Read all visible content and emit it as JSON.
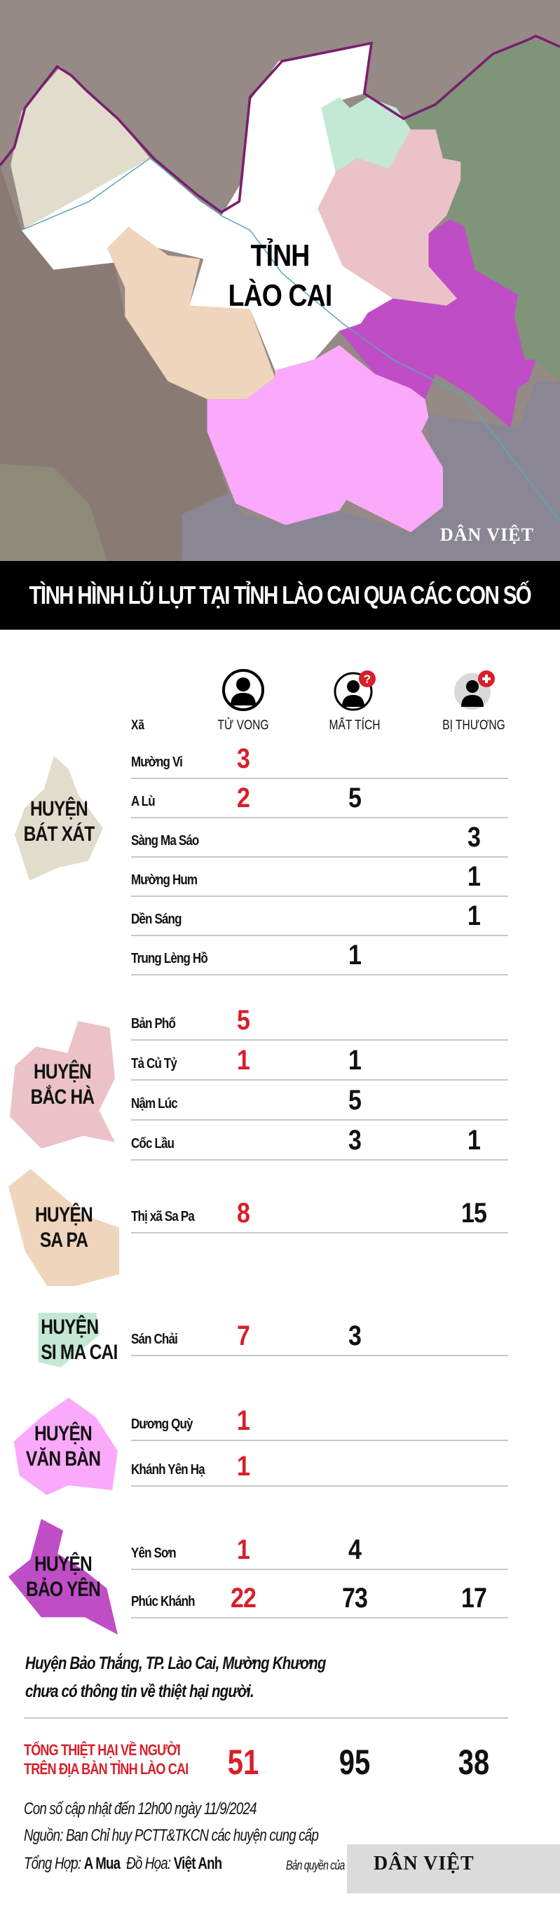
{
  "map": {
    "label_line1": "TỈNH",
    "label_line2": "LÀO CAI",
    "logo": "DÂN VIỆT",
    "colors": {
      "background": "#958a85",
      "bat_xat": "#e2dccc",
      "central": "#ffffff",
      "sa_pa": "#efd5bb",
      "si_ma_cai": "#c3e8d5",
      "bac_ha": "#ebc2c8",
      "bao_yen": "#bf4ec6",
      "van_ban": "#fba9fa",
      "border": "#7a1f6e"
    }
  },
  "title": "TÌNH HÌNH LŨ LỤT TẠI TỈNH LÀO CAI QUA CÁC CON SỐ",
  "columns": {
    "xa": "Xã",
    "tu_vong": "TỬ VONG",
    "mat_tich": "MẤT TÍCH",
    "bi_thuong": "BỊ THƯƠNG",
    "icons": [
      "person-icon",
      "person-missing-icon",
      "person-injured-icon"
    ]
  },
  "accent_red": "#d7202a",
  "districts": [
    {
      "line1": "HUYỆN",
      "line2": "BÁT XÁT",
      "color": "#e2dccc",
      "rows": [
        {
          "xa": "Mường Vi",
          "tu_vong": "3",
          "mat_tich": "",
          "bi_thuong": ""
        },
        {
          "xa": "A Lù",
          "tu_vong": "2",
          "mat_tich": "5",
          "bi_thuong": ""
        },
        {
          "xa": "Sàng Ma Sáo",
          "tu_vong": "",
          "mat_tich": "",
          "bi_thuong": "3"
        },
        {
          "xa": "Mường Hum",
          "tu_vong": "",
          "mat_tich": "",
          "bi_thuong": "1"
        },
        {
          "xa": "Dền Sáng",
          "tu_vong": "",
          "mat_tich": "",
          "bi_thuong": "1"
        },
        {
          "xa": "Trung Lèng Hồ",
          "tu_vong": "",
          "mat_tich": "1",
          "bi_thuong": ""
        }
      ]
    },
    {
      "line1": "HUYỆN",
      "line2": "BẮC HÀ",
      "color": "#ebc2c8",
      "rows": [
        {
          "xa": "Bản Phố",
          "tu_vong": "5",
          "mat_tich": "",
          "bi_thuong": ""
        },
        {
          "xa": "Tả Củ Tỷ",
          "tu_vong": "1",
          "mat_tich": "1",
          "bi_thuong": ""
        },
        {
          "xa": "Nậm Lúc",
          "tu_vong": "",
          "mat_tich": "5",
          "bi_thuong": ""
        },
        {
          "xa": "Cốc Lầu",
          "tu_vong": "",
          "mat_tich": "3",
          "bi_thuong": "1"
        }
      ]
    },
    {
      "line1": "HUYỆN",
      "line2": "SA PA",
      "color": "#efd5bb",
      "rows": [
        {
          "xa": "Thị xã Sa Pa",
          "tu_vong": "8",
          "mat_tich": "",
          "bi_thuong": "15"
        }
      ]
    },
    {
      "line1": "HUYỆN",
      "line2": "SI MA CAI",
      "color": "#c3e8d5",
      "rows": [
        {
          "xa": "Sán Chải",
          "tu_vong": "7",
          "mat_tich": "3",
          "bi_thuong": ""
        }
      ]
    },
    {
      "line1": "HUYỆN",
      "line2": "VĂN BÀN",
      "color": "#fba9fa",
      "rows": [
        {
          "xa": "Dương Quỳ",
          "tu_vong": "1",
          "mat_tich": "",
          "bi_thuong": ""
        },
        {
          "xa": "Khánh Yên Hạ",
          "tu_vong": "1",
          "mat_tich": "",
          "bi_thuong": ""
        }
      ]
    },
    {
      "line1": "HUYỆN",
      "line2": "BẢO YÊN",
      "color": "#bf4ec6",
      "rows": [
        {
          "xa": "Yên Sơn",
          "tu_vong": "1",
          "mat_tich": "4",
          "bi_thuong": ""
        },
        {
          "xa": "Phúc Khánh",
          "tu_vong": "22",
          "mat_tich": "73",
          "bi_thuong": "17"
        }
      ]
    }
  ],
  "note": {
    "line1": "Huyện Bảo Thắng, TP. Lào Cai, Mường Khương",
    "line2": "chưa có thông tin về thiệt hại người."
  },
  "totals": {
    "label_line1": "TỔNG THIỆT HẠI VỀ NGƯỜI",
    "label_line2": "TRÊN ĐỊA BÀN TỈNH LÀO CAI",
    "tu_vong": "51",
    "mat_tich": "95",
    "bi_thuong": "38"
  },
  "footer": {
    "updated": "Con số cập nhật đến 12h00 ngày 11/9/2024",
    "source": "Nguồn: Ban Chỉ huy PCTT&TKCN các huyện  cung cấp",
    "compiled_label": "Tổng Hợp:",
    "compiled_by": "A Mua",
    "graphics_label": "Đồ Họa:",
    "graphics_by": "Việt Anh",
    "copyright": "Bản quyền của",
    "logo": "DÂN VIỆT"
  }
}
